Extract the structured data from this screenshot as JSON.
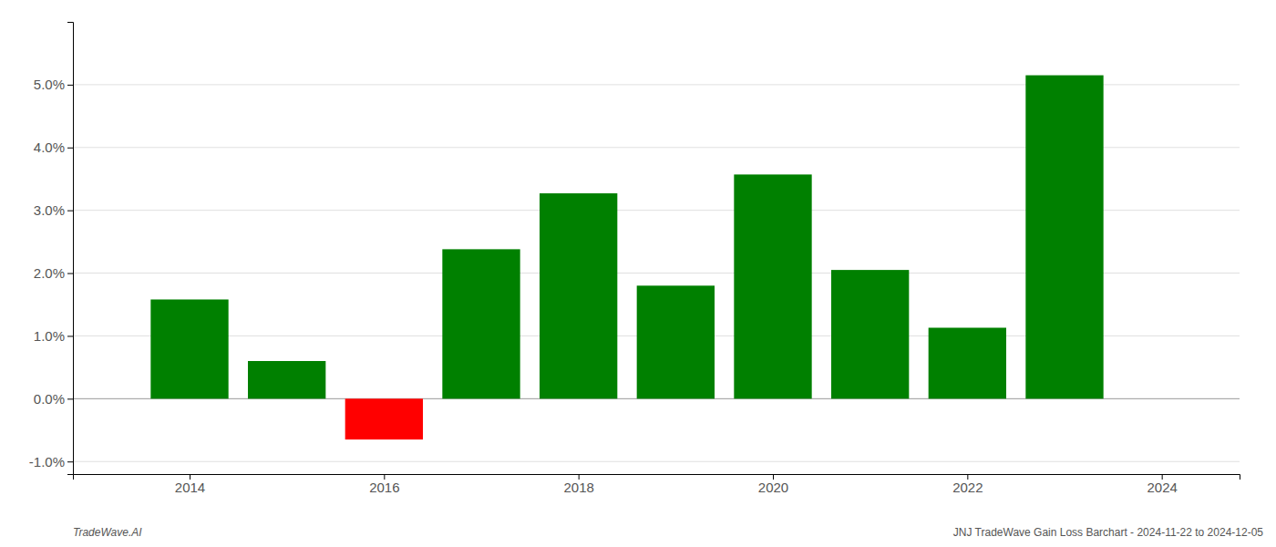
{
  "chart_data": {
    "type": "bar",
    "x": [
      2014,
      2015,
      2016,
      2017,
      2018,
      2019,
      2020,
      2021,
      2022,
      2023
    ],
    "values": [
      0.0158,
      0.006,
      -0.0065,
      0.0238,
      0.0327,
      0.018,
      0.0357,
      0.0205,
      0.0113,
      0.0515
    ],
    "colors": [
      "#008000",
      "#008000",
      "#ff0000",
      "#008000",
      "#008000",
      "#008000",
      "#008000",
      "#008000",
      "#008000",
      "#008000"
    ],
    "xlim": [
      2012.8,
      2024.8
    ],
    "xticks": [
      2014,
      2016,
      2018,
      2020,
      2022,
      2024
    ],
    "ylim": [
      -0.012,
      0.06
    ],
    "yticks": [
      {
        "value": -0.01,
        "label": "-1.0%"
      },
      {
        "value": 0.0,
        "label": "0.0%"
      },
      {
        "value": 0.01,
        "label": "1.0%"
      },
      {
        "value": 0.02,
        "label": "2.0%"
      },
      {
        "value": 0.03,
        "label": "3.0%"
      },
      {
        "value": 0.04,
        "label": "4.0%"
      },
      {
        "value": 0.05,
        "label": "5.0%"
      }
    ],
    "grid": true,
    "annotations": [
      "TradeWave.AI",
      "JNJ TradeWave Gain Loss Barchart - 2024-11-22 to 2024-12-05"
    ]
  }
}
